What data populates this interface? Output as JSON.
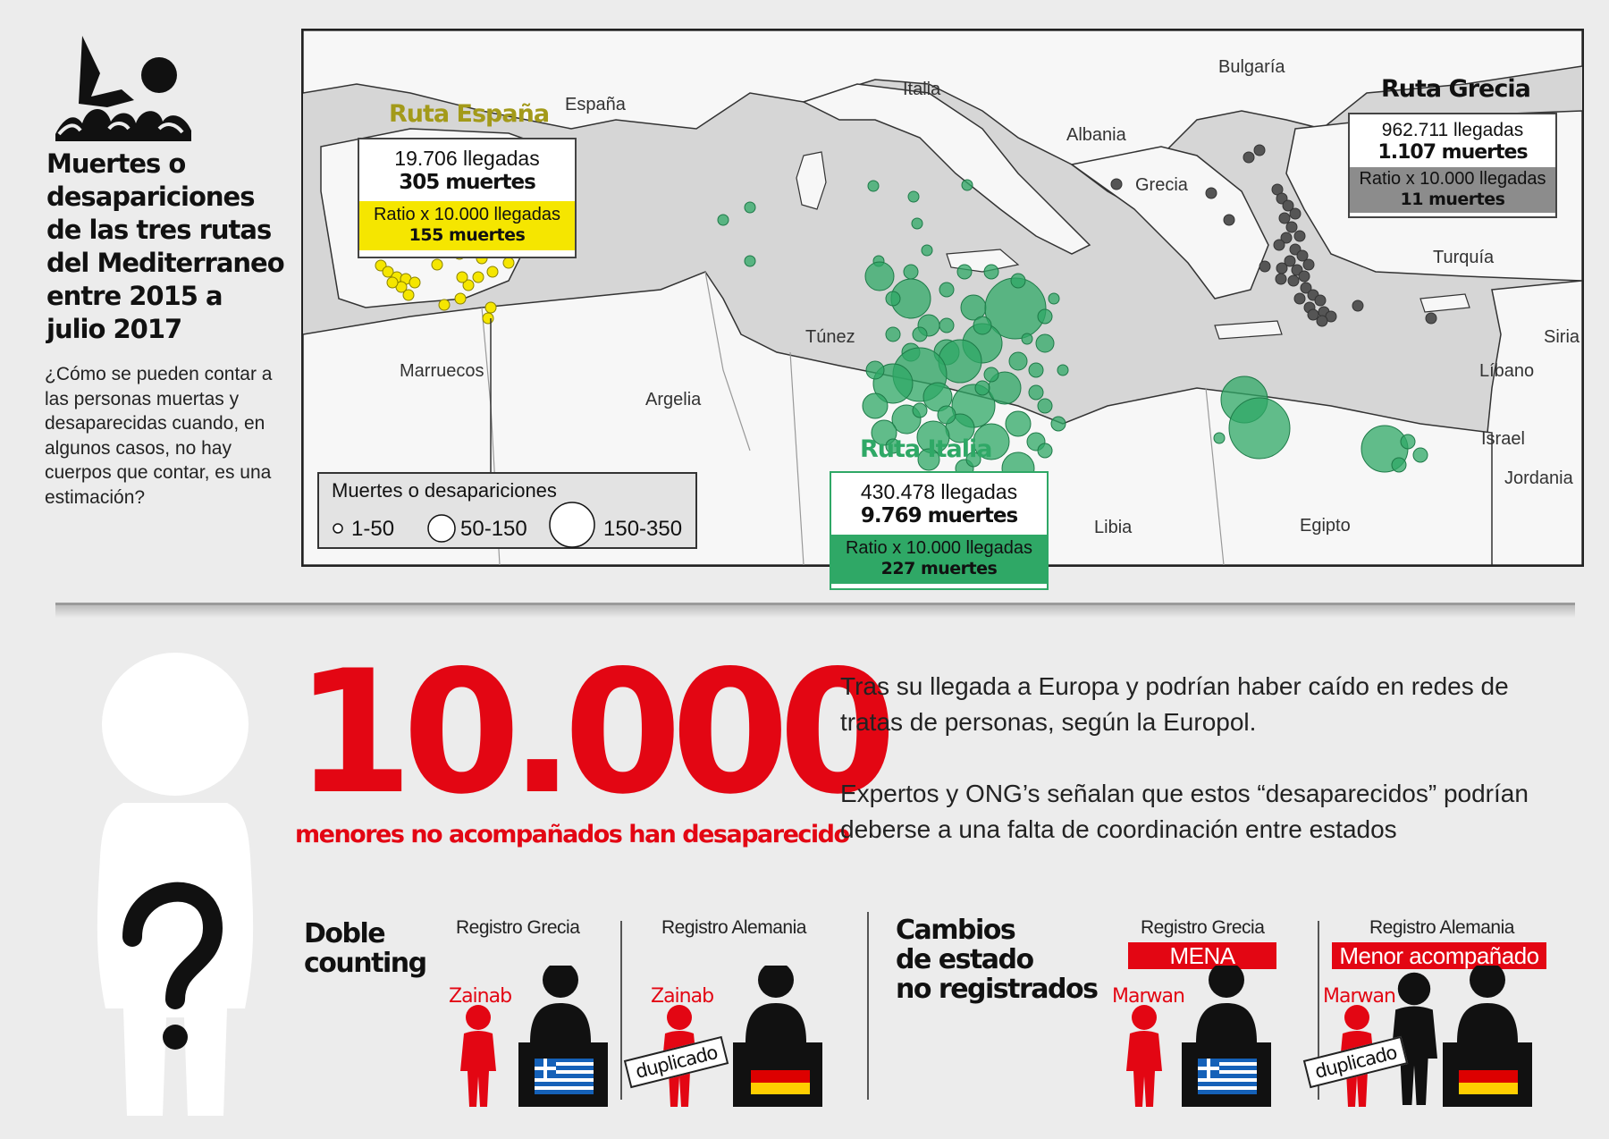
{
  "title": "Muertes o desapariciones de las tres rutas del Mediterraneo entre 2015 a julio 2017",
  "intro": "¿Cómo se pueden contar a las personas muertas y desaparecidas cuando, en algunos casos, no hay cuerpos que contar, es una estimación?",
  "map": {
    "countries": {
      "espana": "España",
      "italia": "Italia",
      "bulgaria": "Bulgaría",
      "albania": "Albania",
      "grecia": "Grecia",
      "turquia": "Turquía",
      "marruecos": "Marruecos",
      "argelia": "Argelia",
      "tunez": "Túnez",
      "siria": "Siria",
      "libano": "Líbano",
      "israel": "Israel",
      "jordania": "Jordania",
      "libia": "Libia",
      "egipto": "Egipto"
    },
    "routes": {
      "espana": {
        "title": "Ruta España",
        "arrivals": "19.706 llegadas",
        "deaths": "305 muertes",
        "ratio_label": "Ratio x 10.000 llegadas",
        "ratio_value": "155 muertes",
        "color": "#f5e600"
      },
      "italia": {
        "title": "Ruta Italia",
        "arrivals": "430.478 llegadas",
        "deaths": "9.769 muertes",
        "ratio_label": "Ratio x 10.000 llegadas",
        "ratio_value": "227 muertes",
        "color": "#2fa866"
      },
      "grecia": {
        "title": "Ruta Grecia",
        "arrivals": "962.711 llegadas",
        "deaths": "1.107 muertes",
        "ratio_label": "Ratio x 10.000 llegadas",
        "ratio_value": "11 muertes",
        "color": "#555555"
      }
    },
    "legend": {
      "title": "Muertes o desapariciones",
      "small": "1-50",
      "medium": "50-150",
      "large": "150-350"
    }
  },
  "headline": {
    "number": "10.000",
    "subtitle": "menores no acompañados han desaparecido"
  },
  "paragraphs": {
    "p1": "Tras su llegada a Europa y podrían haber caído en redes de tratas de personas, según la Europol.",
    "p2": "Expertos y ONG’s señalan que estos “desaparecidos” podrían deberse a una falta de coordinación entre estados"
  },
  "doble": {
    "title_line1": "Doble",
    "title_line2": "counting",
    "reg1": "Registro Grecia",
    "reg2": "Registro Alemania",
    "name1": "Zainab",
    "name2": "Zainab",
    "dup": "duplicado"
  },
  "cambios": {
    "title_line1": "Cambios",
    "title_line2": "de estado",
    "title_line3": "no registrados",
    "reg1": "Registro Grecia",
    "reg2": "Registro Alemania",
    "tag1": "MENA",
    "tag2": "Menor acompañado",
    "name1": "Marwan",
    "name2": "Marwan",
    "dup": "duplicado"
  },
  "colors": {
    "accent_red": "#e30613",
    "italy_green": "#2fa866",
    "spain_yellow": "#f5e600",
    "greece_grey": "#555555"
  }
}
